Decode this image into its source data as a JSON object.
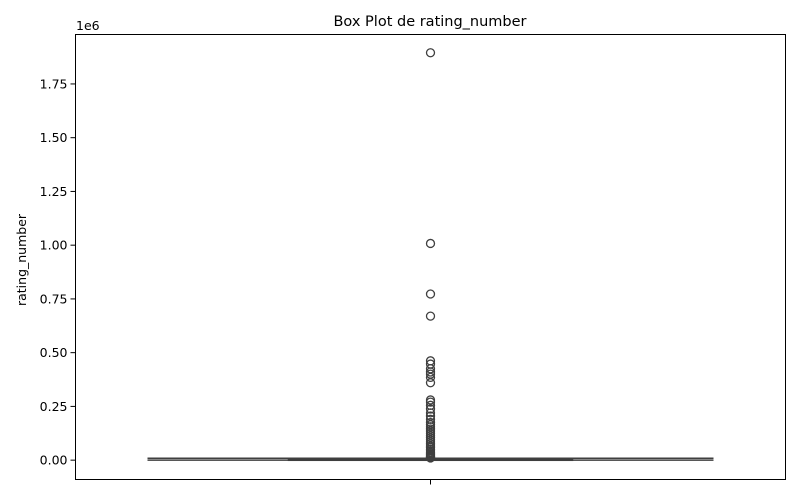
{
  "chart_data": {
    "type": "box",
    "title": "Box Plot de rating_number",
    "xlabel": "",
    "ylabel": "rating_number",
    "offset_label": "1e6",
    "ylim": [
      -0.09,
      1.98
    ],
    "y_scale_multiplier": 1000000,
    "yticks": [
      0.0,
      0.25,
      0.5,
      0.75,
      1.0,
      1.25,
      1.5,
      1.75
    ],
    "ytick_labels": [
      "0.00",
      "0.25",
      "0.50",
      "0.75",
      "1.00",
      "1.25",
      "1.50",
      "1.75"
    ],
    "series": [
      {
        "whisker_low": 0.0,
        "q1": 0.0005,
        "median": 0.0015,
        "q3": 0.004,
        "whisker_high": 0.009,
        "outliers": [
          1.895,
          1.008,
          0.773,
          0.67,
          0.462,
          0.447,
          0.425,
          0.41,
          0.4,
          0.385,
          0.36,
          0.28,
          0.27,
          0.255,
          0.238,
          0.22,
          0.205,
          0.19,
          0.175,
          0.165,
          0.155,
          0.145,
          0.135,
          0.125,
          0.115,
          0.105,
          0.095,
          0.085,
          0.075,
          0.065,
          0.058,
          0.05,
          0.043,
          0.036,
          0.03,
          0.025,
          0.02,
          0.016,
          0.012,
          0.01
        ]
      }
    ],
    "grid": false,
    "legend": "none"
  }
}
